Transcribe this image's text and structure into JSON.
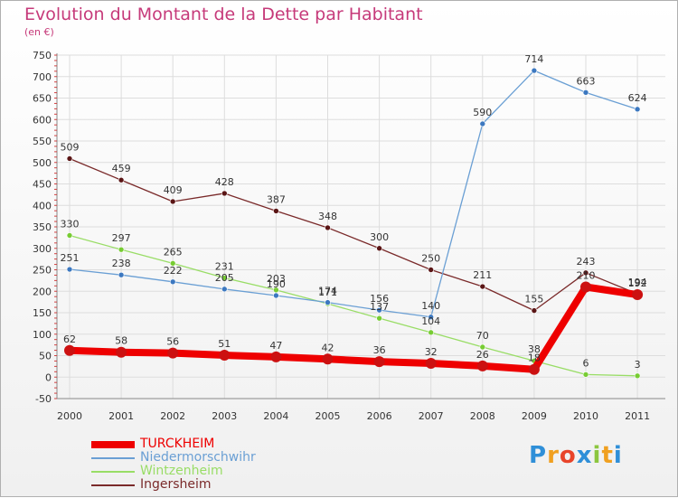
{
  "title": "Evolution du Montant de la Dette par Habitant",
  "subtitle": "(en €)",
  "logo": [
    "P",
    "r",
    "o",
    "x",
    "i",
    "t",
    "i"
  ],
  "logo_colors": [
    "#2f8fd8",
    "#f0a020",
    "#e8442a",
    "#2f8fd8",
    "#8cc63f",
    "#f0a020",
    "#2f8fd8"
  ],
  "chart_data": {
    "type": "line",
    "categories": [
      "2000",
      "2001",
      "2002",
      "2003",
      "2004",
      "2005",
      "2006",
      "2007",
      "2008",
      "2009",
      "2010",
      "2011"
    ],
    "ylim": [
      -50,
      750
    ],
    "yticks": [
      -50,
      0,
      50,
      100,
      150,
      200,
      250,
      300,
      350,
      400,
      450,
      500,
      550,
      600,
      650,
      700,
      750
    ],
    "grid": true,
    "legend_position": "bottom-left",
    "series": [
      {
        "name": "TURCKHEIM",
        "color": "#ee0000",
        "marker": "#cc1111",
        "width": 8,
        "values": [
          62,
          58,
          56,
          51,
          47,
          42,
          36,
          32,
          26,
          18,
          210,
          192
        ]
      },
      {
        "name": "Niedermorschwihr",
        "color": "#6a9fd4",
        "marker": "#3c78c0",
        "width": 1.3,
        "values": [
          251,
          238,
          222,
          205,
          190,
          174,
          156,
          140,
          590,
          714,
          663,
          624
        ]
      },
      {
        "name": "Wintzenheim",
        "color": "#99dd66",
        "marker": "#77cc33",
        "width": 1.3,
        "values": [
          330,
          297,
          265,
          231,
          203,
          171,
          137,
          104,
          70,
          38,
          6,
          3
        ]
      },
      {
        "name": "Ingersheim",
        "color": "#7a2a2a",
        "marker": "#5a1515",
        "width": 1.3,
        "values": [
          509,
          459,
          409,
          428,
          387,
          348,
          300,
          250,
          211,
          155,
          243,
          194
        ]
      }
    ]
  }
}
